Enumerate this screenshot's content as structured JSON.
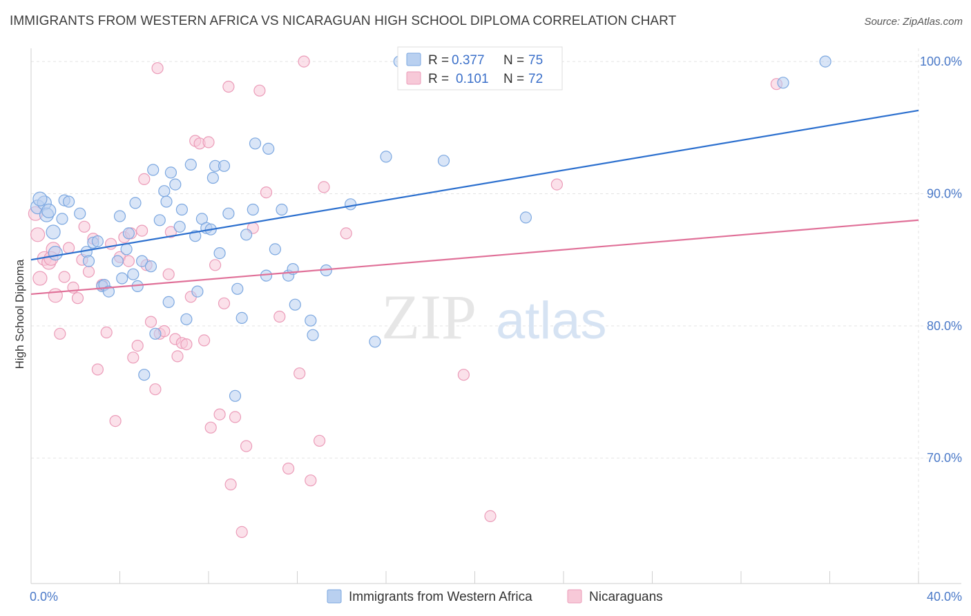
{
  "chart_data": {
    "type": "scatter",
    "title": "IMMIGRANTS FROM WESTERN AFRICA VS NICARAGUAN HIGH SCHOOL DIPLOMA CORRELATION CHART",
    "source": "Source: ZipAtlas.com",
    "watermark": {
      "zip": "ZIP",
      "atlas": "atlas"
    },
    "xlabel": "",
    "ylabel": "High School Diploma",
    "xlim": [
      0,
      40
    ],
    "ylim": [
      60.5,
      101
    ],
    "x_tick_labels": [
      {
        "value": 0,
        "label": "0.0%"
      },
      {
        "value": 40,
        "label": "40.0%"
      }
    ],
    "y_tick_labels": [
      {
        "value": 100,
        "label": "100.0%"
      },
      {
        "value": 90,
        "label": "90.0%"
      },
      {
        "value": 80,
        "label": "80.0%"
      },
      {
        "value": 70,
        "label": "70.0%"
      }
    ],
    "legend": [
      {
        "r_label": "R = ",
        "r_value": "0.377",
        "n_label": "N = ",
        "n_value": "75"
      },
      {
        "r_label": "R = ",
        "r_value": "0.101",
        "n_label": "N = ",
        "n_value": "72"
      }
    ],
    "series": [
      {
        "name": "Immigrants from Western Africa",
        "color": "#7ba7e0",
        "fill": "#b9d0f0",
        "line_color": "#2b6fce",
        "trend": [
          [
            0,
            85.0
          ],
          [
            40,
            96.3
          ]
        ],
        "points": [
          [
            0.3,
            89.0
          ],
          [
            0.6,
            89.3
          ],
          [
            0.7,
            88.4
          ],
          [
            0.8,
            88.7
          ],
          [
            1.0,
            87.1
          ],
          [
            1.1,
            85.5
          ],
          [
            1.4,
            88.1
          ],
          [
            1.5,
            89.5
          ],
          [
            1.7,
            89.4
          ],
          [
            2.2,
            88.5
          ],
          [
            2.5,
            85.6
          ],
          [
            2.6,
            84.9
          ],
          [
            2.8,
            86.3
          ],
          [
            3.0,
            86.4
          ],
          [
            3.2,
            83.0
          ],
          [
            3.3,
            83.1
          ],
          [
            3.5,
            82.6
          ],
          [
            3.9,
            84.9
          ],
          [
            4.0,
            88.3
          ],
          [
            4.1,
            83.6
          ],
          [
            4.3,
            85.8
          ],
          [
            4.4,
            87.0
          ],
          [
            4.6,
            83.9
          ],
          [
            4.7,
            89.3
          ],
          [
            4.8,
            83.0
          ],
          [
            5.0,
            84.9
          ],
          [
            5.1,
            76.3
          ],
          [
            5.4,
            84.5
          ],
          [
            5.5,
            91.8
          ],
          [
            5.6,
            79.4
          ],
          [
            5.8,
            88.0
          ],
          [
            6.0,
            90.2
          ],
          [
            6.1,
            89.4
          ],
          [
            6.2,
            81.8
          ],
          [
            6.3,
            91.6
          ],
          [
            6.5,
            90.7
          ],
          [
            6.7,
            87.5
          ],
          [
            6.8,
            88.8
          ],
          [
            7.0,
            80.5
          ],
          [
            7.2,
            92.2
          ],
          [
            7.4,
            86.8
          ],
          [
            7.5,
            82.6
          ],
          [
            7.7,
            88.1
          ],
          [
            7.9,
            87.4
          ],
          [
            8.1,
            87.3
          ],
          [
            8.2,
            91.2
          ],
          [
            8.3,
            92.1
          ],
          [
            8.5,
            85.5
          ],
          [
            8.7,
            92.1
          ],
          [
            8.9,
            88.5
          ],
          [
            9.2,
            74.7
          ],
          [
            9.3,
            82.8
          ],
          [
            9.5,
            80.6
          ],
          [
            9.7,
            86.9
          ],
          [
            10.0,
            88.8
          ],
          [
            10.1,
            93.8
          ],
          [
            10.6,
            83.8
          ],
          [
            10.7,
            93.4
          ],
          [
            11.0,
            85.8
          ],
          [
            11.3,
            88.8
          ],
          [
            11.6,
            83.8
          ],
          [
            11.8,
            84.3
          ],
          [
            11.9,
            81.6
          ],
          [
            12.6,
            80.4
          ],
          [
            12.7,
            79.3
          ],
          [
            13.3,
            84.2
          ],
          [
            14.4,
            89.2
          ],
          [
            15.5,
            78.8
          ],
          [
            16.0,
            92.8
          ],
          [
            16.6,
            100.0
          ],
          [
            18.6,
            92.5
          ],
          [
            22.3,
            88.2
          ],
          [
            33.9,
            98.4
          ],
          [
            35.8,
            100.0
          ],
          [
            0.4,
            89.6
          ]
        ]
      },
      {
        "name": "Nicaraguans",
        "color": "#eb9bb8",
        "fill": "#f7c9d8",
        "line_color": "#e07098",
        "trend": [
          [
            0,
            82.4
          ],
          [
            40,
            88.0
          ]
        ],
        "points": [
          [
            0.2,
            88.5
          ],
          [
            0.3,
            86.9
          ],
          [
            0.4,
            83.6
          ],
          [
            0.6,
            85.1
          ],
          [
            0.8,
            84.8
          ],
          [
            1.0,
            85.8
          ],
          [
            1.1,
            82.3
          ],
          [
            1.3,
            79.4
          ],
          [
            1.5,
            83.7
          ],
          [
            1.7,
            85.9
          ],
          [
            1.9,
            82.9
          ],
          [
            2.1,
            82.1
          ],
          [
            2.3,
            85.0
          ],
          [
            2.4,
            87.5
          ],
          [
            2.6,
            84.1
          ],
          [
            2.8,
            86.6
          ],
          [
            3.0,
            76.7
          ],
          [
            3.2,
            83.1
          ],
          [
            3.4,
            79.5
          ],
          [
            3.6,
            86.2
          ],
          [
            3.8,
            72.8
          ],
          [
            4.0,
            85.2
          ],
          [
            4.2,
            86.7
          ],
          [
            4.4,
            84.9
          ],
          [
            4.5,
            87.0
          ],
          [
            4.6,
            77.6
          ],
          [
            4.8,
            78.5
          ],
          [
            5.0,
            87.2
          ],
          [
            5.1,
            91.1
          ],
          [
            5.2,
            84.6
          ],
          [
            5.4,
            80.3
          ],
          [
            5.6,
            75.2
          ],
          [
            5.7,
            99.5
          ],
          [
            5.8,
            79.4
          ],
          [
            6.0,
            79.6
          ],
          [
            6.2,
            83.9
          ],
          [
            6.3,
            87.1
          ],
          [
            6.5,
            79.0
          ],
          [
            6.6,
            77.7
          ],
          [
            6.8,
            78.7
          ],
          [
            7.0,
            78.6
          ],
          [
            7.2,
            82.2
          ],
          [
            7.4,
            94.0
          ],
          [
            7.6,
            93.8
          ],
          [
            7.8,
            78.9
          ],
          [
            8.0,
            93.9
          ],
          [
            8.1,
            72.3
          ],
          [
            8.3,
            84.6
          ],
          [
            8.5,
            73.3
          ],
          [
            8.7,
            81.7
          ],
          [
            8.9,
            98.1
          ],
          [
            9.0,
            68.0
          ],
          [
            9.2,
            73.1
          ],
          [
            9.5,
            64.4
          ],
          [
            9.7,
            70.9
          ],
          [
            10.0,
            87.4
          ],
          [
            10.3,
            97.8
          ],
          [
            10.6,
            90.1
          ],
          [
            11.2,
            80.7
          ],
          [
            11.6,
            69.2
          ],
          [
            12.1,
            76.4
          ],
          [
            12.3,
            100.0
          ],
          [
            12.6,
            68.3
          ],
          [
            13.0,
            71.3
          ],
          [
            13.2,
            90.5
          ],
          [
            14.2,
            87.0
          ],
          [
            19.5,
            76.3
          ],
          [
            20.7,
            65.6
          ],
          [
            21.7,
            100.0
          ],
          [
            23.7,
            90.7
          ],
          [
            33.6,
            98.3
          ],
          [
            0.9,
            85.1
          ]
        ]
      }
    ]
  }
}
